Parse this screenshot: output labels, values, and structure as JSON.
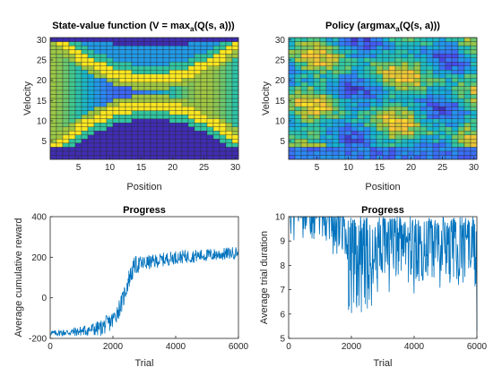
{
  "figure": {
    "background": "#ffffff"
  },
  "chart_data": [
    {
      "type": "heatmap",
      "title": "State-value function (V = max",
      "title_sub": "a",
      "title_tail": "(Q(s, a)))",
      "xlabel": "Position",
      "ylabel": "Velocity",
      "xlim": [
        1,
        30
      ],
      "ylim": [
        1,
        30
      ],
      "xticks": [
        5,
        10,
        15,
        20,
        25,
        30
      ],
      "yticks": [
        5,
        10,
        15,
        20,
        25,
        30
      ],
      "colormap": "parula",
      "pattern": "value"
    },
    {
      "type": "heatmap",
      "title": "Policy (argmax",
      "title_sub": "a",
      "title_tail": "(Q(s, a)))",
      "xlabel": "Position",
      "ylabel": "Velocity",
      "xlim": [
        1,
        30
      ],
      "ylim": [
        1,
        30
      ],
      "xticks": [
        5,
        10,
        15,
        20,
        25,
        30
      ],
      "yticks": [
        5,
        10,
        15,
        20,
        25,
        30
      ],
      "colormap": "parula",
      "pattern": "policy"
    },
    {
      "type": "line",
      "title": "Progress",
      "xlabel": "Trial",
      "ylabel": "Average cumulative reward",
      "xlim": [
        0,
        6000
      ],
      "ylim": [
        -200,
        400
      ],
      "xticks": [
        0,
        2000,
        4000,
        6000
      ],
      "yticks": [
        -200,
        0,
        200,
        400
      ],
      "color": "#0072BD",
      "keypoints": [
        [
          0,
          -175
        ],
        [
          800,
          -168
        ],
        [
          1600,
          -150
        ],
        [
          2000,
          -110
        ],
        [
          2300,
          -20
        ],
        [
          2500,
          90
        ],
        [
          2700,
          160
        ],
        [
          3000,
          170
        ],
        [
          3500,
          185
        ],
        [
          4000,
          200
        ],
        [
          4500,
          205
        ],
        [
          5000,
          210
        ],
        [
          5500,
          215
        ],
        [
          6000,
          225
        ]
      ],
      "noise": [
        [
          0,
          12
        ],
        [
          1000,
          25
        ],
        [
          1800,
          45
        ],
        [
          2500,
          50
        ],
        [
          3200,
          35
        ],
        [
          6000,
          30
        ]
      ]
    },
    {
      "type": "line",
      "title": "Progress",
      "xlabel": "Trial",
      "ylabel": "Average trial duration",
      "xlim": [
        0,
        6000
      ],
      "ylim": [
        5,
        10
      ],
      "xticks": [
        0,
        2000,
        4000,
        6000
      ],
      "yticks": [
        5,
        6,
        7,
        8,
        9,
        10
      ],
      "color": "#0072BD",
      "pattern": "duration"
    }
  ]
}
